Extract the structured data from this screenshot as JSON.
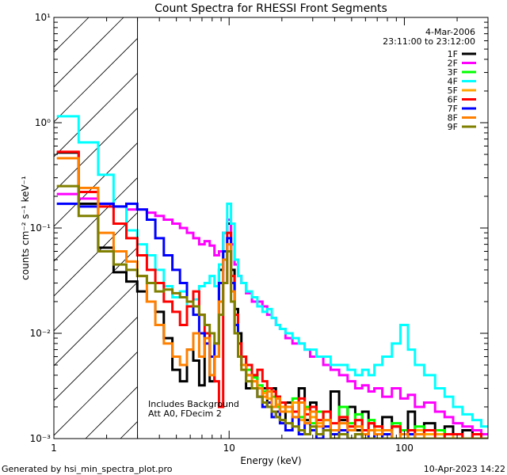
{
  "chart_data": {
    "type": "line",
    "title": "Count Spectra for RHESSI Front Segments",
    "xlabel": "Energy (keV)",
    "ylabel": "counts cm⁻² s⁻¹ keV⁻¹",
    "xscale": "log",
    "yscale": "log",
    "xlim": [
      1,
      300
    ],
    "ylim": [
      0.001,
      10
    ],
    "x_tick_labels": [
      "1",
      "10",
      "100"
    ],
    "y_tick_labels": [
      "10⁻³",
      "10⁻²",
      "10⁻¹",
      "10⁰",
      "10¹"
    ],
    "date": "4-Mar-2006",
    "time_range": "23:11:00 to 23:12:00",
    "hatched_region": {
      "x_from": 1,
      "x_to": 3,
      "note": "below energy threshold"
    },
    "annotation_lines": [
      "Includes Background",
      "Att A0, FDecim 2"
    ],
    "footer_left": "Generated by hsi_min_spectra_plot.pro",
    "footer_right": "10-Apr-2023 14:22",
    "legend_position": "top-right",
    "series": [
      {
        "name": "1F",
        "color": "#000000",
        "x": [
          1.2,
          1.6,
          2.0,
          2.4,
          2.8,
          3.2,
          3.6,
          4.0,
          4.5,
          5.0,
          5.5,
          6.0,
          6.5,
          7.0,
          7.5,
          8.0,
          8.5,
          9.0,
          9.5,
          10.0,
          10.5,
          11.0,
          11.5,
          12,
          13,
          14,
          15,
          16,
          17,
          18,
          19,
          20,
          22,
          24,
          26,
          28,
          30,
          33,
          36,
          40,
          45,
          50,
          55,
          60,
          65,
          70,
          80,
          90,
          100,
          110,
          120,
          140,
          160,
          180,
          200,
          230,
          260,
          290
        ],
        "y": [
          0.52,
          0.17,
          0.065,
          0.038,
          0.031,
          0.025,
          0.02,
          0.016,
          0.009,
          0.0045,
          0.0035,
          0.007,
          0.0055,
          0.0032,
          0.01,
          0.0035,
          0.006,
          0.04,
          0.09,
          0.11,
          0.04,
          0.017,
          0.01,
          0.006,
          0.003,
          0.004,
          0.0025,
          0.003,
          0.002,
          0.003,
          0.0025,
          0.0015,
          0.0022,
          0.0018,
          0.003,
          0.0015,
          0.0022,
          0.0018,
          0.0012,
          0.0028,
          0.0015,
          0.002,
          0.0012,
          0.0018,
          0.0014,
          0.001,
          0.0016,
          0.0013,
          0.0011,
          0.0018,
          0.0012,
          0.0014,
          0.0011,
          0.0013,
          0.0011,
          0.0012,
          0.001,
          0.0011
        ]
      },
      {
        "name": "2F",
        "color": "#ff00ff",
        "x": [
          1.2,
          1.6,
          2.0,
          2.4,
          2.8,
          3.2,
          3.6,
          4.0,
          4.5,
          5.0,
          5.5,
          6.0,
          6.5,
          7.0,
          7.5,
          8.0,
          8.5,
          9.0,
          9.5,
          10.0,
          10.5,
          11.0,
          11.5,
          12,
          13,
          14,
          15,
          16,
          17,
          18,
          19,
          20,
          22,
          24,
          26,
          28,
          30,
          33,
          36,
          40,
          45,
          50,
          55,
          60,
          65,
          70,
          80,
          90,
          100,
          110,
          120,
          140,
          160,
          180,
          200,
          230,
          260,
          290
        ],
        "y": [
          0.21,
          0.19,
          0.17,
          0.16,
          0.15,
          0.15,
          0.14,
          0.13,
          0.12,
          0.11,
          0.1,
          0.09,
          0.08,
          0.07,
          0.075,
          0.068,
          0.055,
          0.06,
          0.09,
          0.12,
          0.07,
          0.045,
          0.035,
          0.03,
          0.024,
          0.02,
          0.02,
          0.018,
          0.015,
          0.014,
          0.012,
          0.011,
          0.009,
          0.008,
          0.008,
          0.007,
          0.006,
          0.006,
          0.005,
          0.0045,
          0.004,
          0.0035,
          0.003,
          0.0032,
          0.0028,
          0.003,
          0.0025,
          0.003,
          0.0024,
          0.0026,
          0.002,
          0.0022,
          0.0018,
          0.0016,
          0.0014,
          0.0013,
          0.0012,
          0.0011
        ]
      },
      {
        "name": "3F",
        "color": "#00ff00",
        "x": [
          12,
          13,
          14,
          15,
          16,
          17,
          18,
          19,
          20,
          22,
          24,
          26,
          28,
          30,
          33,
          36,
          40,
          45,
          50,
          55,
          60,
          65,
          70,
          80,
          90,
          100,
          110,
          120,
          140,
          160,
          180,
          200,
          230,
          260,
          290
        ],
        "y": [
          0.006,
          0.0045,
          0.0038,
          0.0032,
          0.0028,
          0.003,
          0.0025,
          0.002,
          0.0022,
          0.0018,
          0.0024,
          0.0016,
          0.002,
          0.0014,
          0.0018,
          0.0015,
          0.0012,
          0.002,
          0.0014,
          0.0017,
          0.0012,
          0.0015,
          0.0013,
          0.0011,
          0.0014,
          0.0012,
          0.001,
          0.0013,
          0.0011,
          0.0012,
          0.001,
          0.0011,
          0.001,
          0.0011,
          0.001
        ]
      },
      {
        "name": "4F",
        "color": "#00ffff",
        "x": [
          1.2,
          1.6,
          2.0,
          2.4,
          2.8,
          3.2,
          3.6,
          4.0,
          4.5,
          5.0,
          5.5,
          6.0,
          6.5,
          7.0,
          7.5,
          8.0,
          8.5,
          9.0,
          9.5,
          10.0,
          10.5,
          11.0,
          11.5,
          12,
          13,
          14,
          15,
          16,
          17,
          18,
          19,
          20,
          22,
          24,
          26,
          28,
          30,
          33,
          36,
          40,
          45,
          50,
          55,
          60,
          65,
          70,
          80,
          90,
          100,
          110,
          120,
          140,
          160,
          180,
          200,
          230,
          260,
          290
        ],
        "y": [
          1.15,
          0.65,
          0.32,
          0.16,
          0.095,
          0.07,
          0.055,
          0.04,
          0.028,
          0.022,
          0.025,
          0.018,
          0.021,
          0.028,
          0.03,
          0.035,
          0.028,
          0.045,
          0.09,
          0.17,
          0.11,
          0.05,
          0.035,
          0.03,
          0.025,
          0.022,
          0.018,
          0.016,
          0.017,
          0.014,
          0.012,
          0.011,
          0.01,
          0.009,
          0.008,
          0.007,
          0.007,
          0.006,
          0.006,
          0.005,
          0.005,
          0.0045,
          0.004,
          0.0045,
          0.004,
          0.005,
          0.006,
          0.008,
          0.012,
          0.007,
          0.005,
          0.004,
          0.003,
          0.0025,
          0.002,
          0.0017,
          0.0015,
          0.0013
        ]
      },
      {
        "name": "5F",
        "color": "#ffa500",
        "x": [
          12,
          13,
          14,
          15,
          16,
          17,
          18,
          19,
          20,
          22,
          24,
          26,
          28,
          30,
          33,
          36,
          40,
          45,
          50,
          55,
          60,
          65,
          70,
          80,
          90,
          100,
          110,
          120,
          140,
          160,
          180,
          200,
          230,
          260,
          290
        ],
        "y": [
          0.005,
          0.004,
          0.0035,
          0.003,
          0.0027,
          0.0024,
          0.0028,
          0.0021,
          0.002,
          0.0018,
          0.0022,
          0.0015,
          0.0019,
          0.0016,
          0.0014,
          0.0018,
          0.0012,
          0.0016,
          0.0013,
          0.0015,
          0.0011,
          0.0014,
          0.0012,
          0.0011,
          0.0013,
          0.0011,
          0.001,
          0.0012,
          0.0011,
          0.0011,
          0.001,
          0.0011,
          0.001,
          0.001,
          0.001
        ]
      },
      {
        "name": "6F",
        "color": "#ff0000",
        "x": [
          1.2,
          1.6,
          2.0,
          2.4,
          2.8,
          3.2,
          3.6,
          4.0,
          4.5,
          5.0,
          5.5,
          6.0,
          6.5,
          7.0,
          7.5,
          8.0,
          8.5,
          9.0,
          9.5,
          10.0,
          10.5,
          11.0,
          11.5,
          12,
          13,
          14,
          15,
          16,
          17,
          18,
          19,
          20,
          22,
          24,
          26,
          28,
          30,
          33,
          36,
          40,
          45,
          50,
          55,
          60,
          65,
          70,
          80,
          90,
          100,
          110,
          120,
          140,
          160,
          180,
          200,
          230,
          260,
          290
        ],
        "y": [
          0.53,
          0.22,
          0.16,
          0.11,
          0.08,
          0.055,
          0.04,
          0.03,
          0.02,
          0.016,
          0.012,
          0.018,
          0.025,
          0.015,
          0.01,
          0.006,
          0.0035,
          0.002,
          0.03,
          0.09,
          0.035,
          0.015,
          0.008,
          0.006,
          0.005,
          0.004,
          0.0045,
          0.0035,
          0.003,
          0.0028,
          0.0025,
          0.0022,
          0.002,
          0.0018,
          0.0024,
          0.0017,
          0.002,
          0.0015,
          0.0018,
          0.0014,
          0.0016,
          0.0013,
          0.0015,
          0.0012,
          0.0014,
          0.0013,
          0.0012,
          0.0013,
          0.0011,
          0.0012,
          0.0011,
          0.0012,
          0.001,
          0.0011,
          0.0011,
          0.001,
          0.0011,
          0.001
        ]
      },
      {
        "name": "7F",
        "color": "#0000ff",
        "x": [
          1.2,
          1.6,
          2.0,
          2.4,
          2.8,
          3.2,
          3.6,
          4.0,
          4.5,
          5.0,
          5.5,
          6.0,
          6.5,
          7.0,
          7.5,
          8.0,
          8.5,
          9.0,
          9.5,
          10.0,
          10.5,
          11.0,
          11.5,
          12,
          13,
          14,
          15,
          16,
          17,
          18,
          19,
          20,
          22,
          24,
          26,
          28,
          30,
          33,
          36,
          40,
          45,
          50,
          55,
          60,
          65,
          70,
          80,
          90,
          100,
          110,
          120,
          140,
          160,
          180,
          200,
          230,
          260,
          290
        ],
        "y": [
          0.17,
          0.16,
          0.17,
          0.16,
          0.17,
          0.15,
          0.12,
          0.08,
          0.055,
          0.04,
          0.03,
          0.02,
          0.015,
          0.01,
          0.008,
          0.006,
          0.008,
          0.03,
          0.06,
          0.08,
          0.03,
          0.012,
          0.006,
          0.005,
          0.004,
          0.003,
          0.0025,
          0.002,
          0.0022,
          0.0016,
          0.0018,
          0.0014,
          0.0012,
          0.0016,
          0.0011,
          0.0014,
          0.0012,
          0.001,
          0.0013,
          0.0011,
          0.0012,
          0.001,
          0.0011,
          0.001,
          0.0012,
          0.001,
          0.0011,
          0.001,
          0.001,
          0.0011,
          0.001,
          0.001,
          0.001,
          0.001,
          0.001,
          0.001,
          0.001,
          0.001
        ]
      },
      {
        "name": "8F",
        "color": "#ff8000",
        "x": [
          1.2,
          1.6,
          2.0,
          2.4,
          2.8,
          3.2,
          3.6,
          4.0,
          4.5,
          5.0,
          5.5,
          6.0,
          6.5,
          7.0,
          7.5,
          8.0,
          8.5,
          9.0,
          9.5,
          10.0,
          10.5,
          11.0,
          11.5,
          12,
          13,
          14,
          15,
          16,
          17,
          18,
          19,
          20,
          22,
          24,
          26,
          28,
          30,
          33,
          36,
          40,
          45,
          50,
          55,
          60,
          65,
          70,
          80,
          90,
          100,
          110,
          120,
          140,
          160,
          180,
          200,
          230,
          260,
          290
        ],
        "y": [
          0.46,
          0.24,
          0.09,
          0.06,
          0.048,
          0.035,
          0.02,
          0.012,
          0.008,
          0.006,
          0.005,
          0.007,
          0.01,
          0.006,
          0.009,
          0.004,
          0.006,
          0.02,
          0.05,
          0.07,
          0.025,
          0.01,
          0.006,
          0.005,
          0.004,
          0.0035,
          0.003,
          0.0025,
          0.0028,
          0.002,
          0.0024,
          0.0018,
          0.002,
          0.0016,
          0.0022,
          0.0014,
          0.0018,
          0.0013,
          0.0015,
          0.0012,
          0.0014,
          0.0012,
          0.0013,
          0.0011,
          0.0012,
          0.0011,
          0.0012,
          0.001,
          0.0011,
          0.001,
          0.0011,
          0.001,
          0.001,
          0.001,
          0.001,
          0.001,
          0.001,
          0.001
        ]
      },
      {
        "name": "9F",
        "color": "#7f7f00",
        "x": [
          1.2,
          1.6,
          2.0,
          2.4,
          2.8,
          3.2,
          3.6,
          4.0,
          4.5,
          5.0,
          5.5,
          6.0,
          6.5,
          7.0,
          7.5,
          8.0,
          8.5,
          9.0,
          9.5,
          10.0,
          10.5,
          11.0,
          11.5,
          12,
          13,
          14,
          15,
          16,
          17,
          18,
          19,
          20,
          22,
          24,
          26,
          28,
          30,
          33,
          36,
          40,
          45,
          50,
          55,
          60,
          65,
          70,
          80,
          90,
          100,
          110,
          120,
          140,
          160,
          180,
          200,
          230,
          260,
          290
        ],
        "y": [
          0.25,
          0.13,
          0.06,
          0.045,
          0.04,
          0.035,
          0.03,
          0.025,
          0.026,
          0.024,
          0.022,
          0.02,
          0.018,
          0.015,
          0.012,
          0.01,
          0.008,
          0.015,
          0.03,
          0.06,
          0.02,
          0.01,
          0.006,
          0.0045,
          0.0035,
          0.003,
          0.0025,
          0.0022,
          0.002,
          0.0018,
          0.0016,
          0.0015,
          0.0014,
          0.0013,
          0.0012,
          0.0011,
          0.0013,
          0.0011,
          0.0012,
          0.001,
          0.0011,
          0.001,
          0.0011,
          0.001,
          0.001,
          0.001,
          0.001,
          0.001,
          0.001,
          0.001,
          0.001,
          0.001,
          0.001,
          0.001,
          0.001,
          0.001,
          0.001,
          0.001
        ]
      }
    ]
  }
}
